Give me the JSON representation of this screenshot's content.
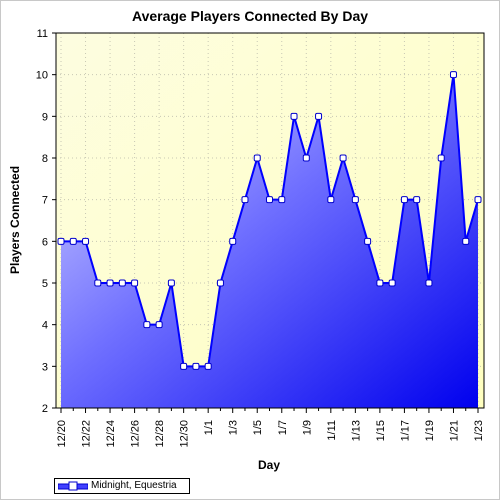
{
  "chart_data": {
    "type": "area",
    "title": "Average Players Connected By Day",
    "xlabel": "Day",
    "ylabel": "Players Connected",
    "ylim": [
      2,
      11
    ],
    "yticks": [
      2,
      3,
      4,
      5,
      6,
      7,
      8,
      9,
      10,
      11
    ],
    "grid": true,
    "legend_position": "bottom-left",
    "x": [
      "12/20",
      "12/21",
      "12/22",
      "12/23",
      "12/24",
      "12/25",
      "12/26",
      "12/27",
      "12/28",
      "12/29",
      "12/30",
      "12/31",
      "1/1",
      "1/2",
      "1/3",
      "1/4",
      "1/5",
      "1/6",
      "1/7",
      "1/8",
      "1/9",
      "1/10",
      "1/11",
      "1/12",
      "1/13",
      "1/14",
      "1/15",
      "1/16",
      "1/17",
      "1/18",
      "1/19",
      "1/20",
      "1/21",
      "1/22",
      "1/23"
    ],
    "xtick_labels": [
      "12/20",
      "12/22",
      "12/24",
      "12/26",
      "12/28",
      "12/30",
      "1/1",
      "1/3",
      "1/5",
      "1/7",
      "1/9",
      "1/11",
      "1/13",
      "1/15",
      "1/17",
      "1/19",
      "1/21",
      "1/23"
    ],
    "series": [
      {
        "name": "Midnight, Equestria",
        "color": "#0000ff",
        "values": [
          6,
          6,
          6,
          5,
          5,
          5,
          5,
          4,
          4,
          5,
          3,
          3,
          3,
          5,
          6,
          7,
          8,
          7,
          7,
          9,
          8,
          9,
          7,
          8,
          7,
          6,
          5,
          5,
          7,
          7,
          5,
          8,
          10,
          6,
          7
        ]
      }
    ]
  }
}
